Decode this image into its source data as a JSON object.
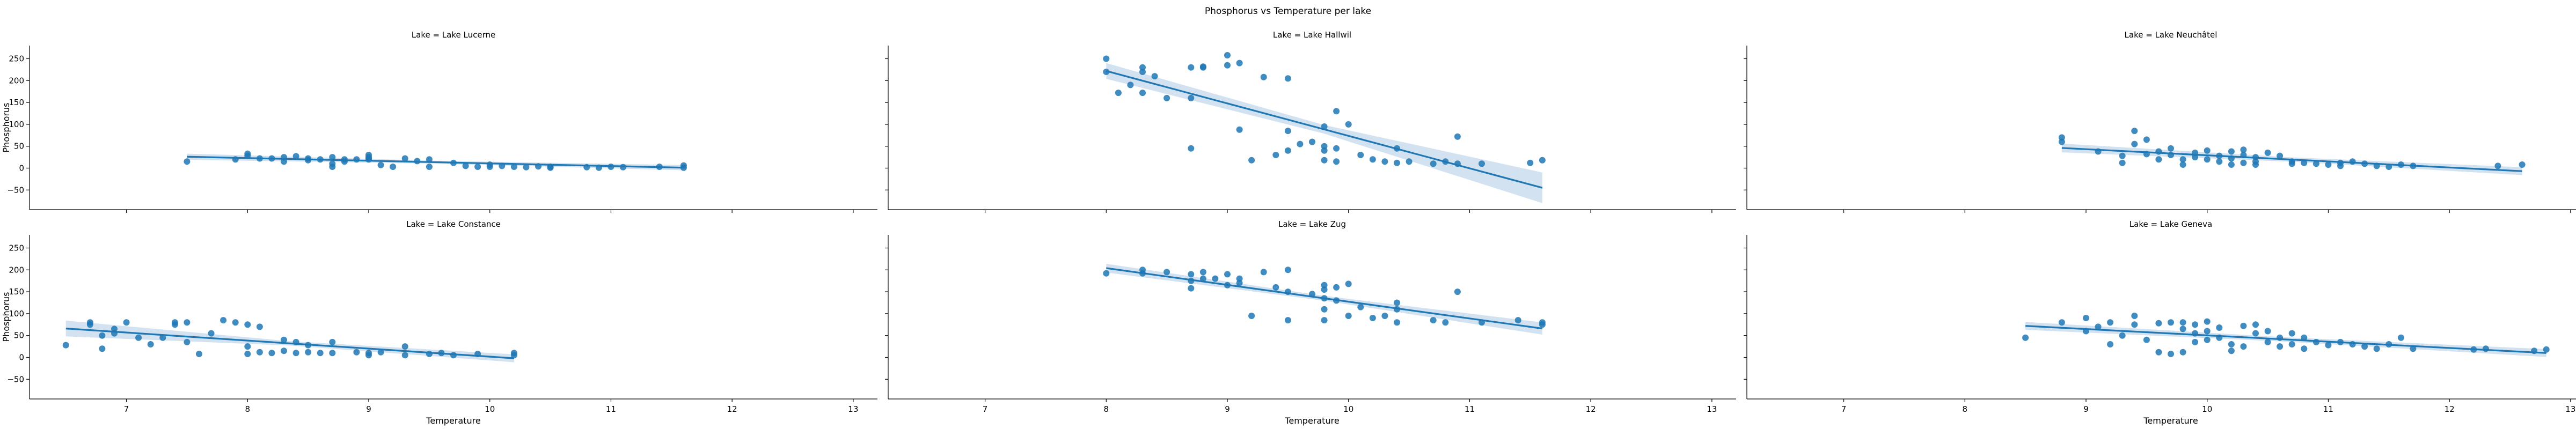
{
  "chart_data": {
    "type": "scatter",
    "title": "Phosphorus vs Temperature per lake",
    "xlabel": "Temperature",
    "ylabel": "Phosphorus",
    "xlim": [
      6.2,
      13.2
    ],
    "ylim": [
      -95,
      280
    ],
    "xticks": [
      7,
      8,
      9,
      10,
      11,
      12,
      13
    ],
    "yticks": [
      -50,
      0,
      50,
      100,
      150,
      200,
      250
    ],
    "grid": false,
    "point_color": "#1f77b4",
    "ci_color": "#aecbe6",
    "panels": [
      {
        "title": "Lake = Lake Lucerne",
        "row": 0,
        "col": 0,
        "fit": {
          "x": [
            7.5,
            11.6
          ],
          "y": [
            26,
            1
          ]
        },
        "ci": [
          7,
          6
        ],
        "points": [
          [
            7.5,
            15
          ],
          [
            7.9,
            20
          ],
          [
            8.0,
            33
          ],
          [
            8.0,
            28
          ],
          [
            8.1,
            22
          ],
          [
            8.2,
            22
          ],
          [
            8.3,
            25
          ],
          [
            8.3,
            15
          ],
          [
            8.4,
            27
          ],
          [
            8.5,
            18
          ],
          [
            8.5,
            22
          ],
          [
            8.6,
            20
          ],
          [
            8.7,
            25
          ],
          [
            8.7,
            3
          ],
          [
            8.7,
            10
          ],
          [
            8.8,
            20
          ],
          [
            8.8,
            15
          ],
          [
            8.9,
            20
          ],
          [
            9.0,
            22
          ],
          [
            9.0,
            30
          ],
          [
            9.0,
            25
          ],
          [
            9.0,
            20
          ],
          [
            9.1,
            7
          ],
          [
            9.2,
            3
          ],
          [
            9.3,
            22
          ],
          [
            9.4,
            16
          ],
          [
            9.5,
            20
          ],
          [
            9.5,
            3
          ],
          [
            9.7,
            12
          ],
          [
            9.8,
            5
          ],
          [
            9.9,
            3
          ],
          [
            10.0,
            8
          ],
          [
            10.0,
            3
          ],
          [
            10.1,
            5
          ],
          [
            10.2,
            3
          ],
          [
            10.3,
            2
          ],
          [
            10.4,
            4
          ],
          [
            10.5,
            1
          ],
          [
            10.5,
            3
          ],
          [
            10.8,
            2
          ],
          [
            10.9,
            1
          ],
          [
            11.0,
            3
          ],
          [
            11.1,
            2
          ],
          [
            11.4,
            3
          ],
          [
            11.6,
            1
          ],
          [
            11.6,
            6
          ]
        ]
      },
      {
        "title": "Lake = Lake Hallwil",
        "row": 0,
        "col": 1,
        "fit": {
          "x": [
            8.0,
            11.6
          ],
          "y": [
            222,
            -45
          ]
        },
        "ci": [
          18,
          35
        ],
        "points": [
          [
            8.0,
            250
          ],
          [
            8.0,
            220
          ],
          [
            8.1,
            172
          ],
          [
            8.2,
            190
          ],
          [
            8.3,
            230
          ],
          [
            8.3,
            220
          ],
          [
            8.3,
            172
          ],
          [
            8.4,
            210
          ],
          [
            8.5,
            160
          ],
          [
            8.7,
            230
          ],
          [
            8.7,
            160
          ],
          [
            8.7,
            45
          ],
          [
            8.8,
            232
          ],
          [
            8.8,
            230
          ],
          [
            9.0,
            258
          ],
          [
            9.0,
            235
          ],
          [
            9.1,
            240
          ],
          [
            9.1,
            88
          ],
          [
            9.2,
            18
          ],
          [
            9.3,
            208
          ],
          [
            9.4,
            30
          ],
          [
            9.5,
            205
          ],
          [
            9.5,
            85
          ],
          [
            9.5,
            40
          ],
          [
            9.6,
            55
          ],
          [
            9.7,
            60
          ],
          [
            9.8,
            95
          ],
          [
            9.8,
            50
          ],
          [
            9.8,
            40
          ],
          [
            9.8,
            18
          ],
          [
            9.9,
            130
          ],
          [
            9.9,
            45
          ],
          [
            9.9,
            15
          ],
          [
            10.0,
            100
          ],
          [
            10.1,
            30
          ],
          [
            10.2,
            20
          ],
          [
            10.3,
            15
          ],
          [
            10.4,
            12
          ],
          [
            10.4,
            45
          ],
          [
            10.5,
            15
          ],
          [
            10.7,
            10
          ],
          [
            10.8,
            15
          ],
          [
            10.9,
            72
          ],
          [
            10.9,
            10
          ],
          [
            11.1,
            10
          ],
          [
            11.5,
            12
          ],
          [
            11.6,
            18
          ]
        ]
      },
      {
        "title": "Lake = Lake Neuchâtel",
        "row": 0,
        "col": 2,
        "fit": {
          "x": [
            8.8,
            12.6
          ],
          "y": [
            46,
            -7
          ]
        },
        "ci": [
          10,
          9
        ],
        "points": [
          [
            8.8,
            70
          ],
          [
            8.8,
            60
          ],
          [
            9.1,
            38
          ],
          [
            9.3,
            28
          ],
          [
            9.3,
            12
          ],
          [
            9.4,
            85
          ],
          [
            9.4,
            55
          ],
          [
            9.5,
            65
          ],
          [
            9.5,
            32
          ],
          [
            9.6,
            38
          ],
          [
            9.6,
            20
          ],
          [
            9.7,
            45
          ],
          [
            9.7,
            30
          ],
          [
            9.8,
            20
          ],
          [
            9.8,
            8
          ],
          [
            9.9,
            35
          ],
          [
            9.9,
            25
          ],
          [
            10.0,
            40
          ],
          [
            10.0,
            20
          ],
          [
            10.1,
            28
          ],
          [
            10.1,
            15
          ],
          [
            10.2,
            38
          ],
          [
            10.2,
            22
          ],
          [
            10.2,
            8
          ],
          [
            10.3,
            42
          ],
          [
            10.3,
            30
          ],
          [
            10.3,
            12
          ],
          [
            10.4,
            25
          ],
          [
            10.4,
            15
          ],
          [
            10.4,
            8
          ],
          [
            10.5,
            35
          ],
          [
            10.6,
            28
          ],
          [
            10.7,
            15
          ],
          [
            10.7,
            10
          ],
          [
            10.8,
            12
          ],
          [
            10.9,
            10
          ],
          [
            11.0,
            8
          ],
          [
            11.1,
            12
          ],
          [
            11.1,
            5
          ],
          [
            11.2,
            15
          ],
          [
            11.3,
            10
          ],
          [
            11.4,
            5
          ],
          [
            11.5,
            3
          ],
          [
            11.6,
            8
          ],
          [
            11.7,
            5
          ],
          [
            12.4,
            5
          ],
          [
            12.6,
            8
          ]
        ]
      },
      {
        "title": "Lake = Lake Constance",
        "row": 1,
        "col": 0,
        "fit": {
          "x": [
            6.5,
            10.2
          ],
          "y": [
            66,
            -2
          ]
        },
        "ci": [
          18,
          9
        ],
        "points": [
          [
            6.5,
            28
          ],
          [
            6.7,
            80
          ],
          [
            6.7,
            75
          ],
          [
            6.8,
            20
          ],
          [
            6.8,
            50
          ],
          [
            6.9,
            65
          ],
          [
            6.9,
            55
          ],
          [
            7.0,
            80
          ],
          [
            7.1,
            45
          ],
          [
            7.2,
            30
          ],
          [
            7.3,
            45
          ],
          [
            7.4,
            75
          ],
          [
            7.4,
            80
          ],
          [
            7.5,
            80
          ],
          [
            7.5,
            35
          ],
          [
            7.6,
            8
          ],
          [
            7.7,
            55
          ],
          [
            7.8,
            85
          ],
          [
            7.9,
            80
          ],
          [
            8.0,
            75
          ],
          [
            8.0,
            25
          ],
          [
            8.0,
            8
          ],
          [
            8.1,
            70
          ],
          [
            8.1,
            12
          ],
          [
            8.2,
            10
          ],
          [
            8.3,
            40
          ],
          [
            8.3,
            15
          ],
          [
            8.4,
            35
          ],
          [
            8.4,
            10
          ],
          [
            8.5,
            12
          ],
          [
            8.5,
            28
          ],
          [
            8.6,
            10
          ],
          [
            8.7,
            35
          ],
          [
            8.7,
            10
          ],
          [
            8.9,
            12
          ],
          [
            9.0,
            10
          ],
          [
            9.0,
            5
          ],
          [
            9.1,
            12
          ],
          [
            9.3,
            25
          ],
          [
            9.3,
            5
          ],
          [
            9.5,
            8
          ],
          [
            9.6,
            10
          ],
          [
            9.7,
            5
          ],
          [
            9.9,
            8
          ],
          [
            10.2,
            10
          ],
          [
            10.2,
            5
          ]
        ]
      },
      {
        "title": "Lake = Lake Zug",
        "row": 1,
        "col": 1,
        "fit": {
          "x": [
            8.0,
            11.6
          ],
          "y": [
            204,
            66
          ]
        },
        "ci": [
          10,
          14
        ],
        "points": [
          [
            8.0,
            192
          ],
          [
            8.3,
            200
          ],
          [
            8.3,
            192
          ],
          [
            8.5,
            195
          ],
          [
            8.7,
            190
          ],
          [
            8.7,
            175
          ],
          [
            8.7,
            158
          ],
          [
            8.8,
            195
          ],
          [
            8.8,
            180
          ],
          [
            8.9,
            180
          ],
          [
            9.0,
            190
          ],
          [
            9.0,
            165
          ],
          [
            9.1,
            180
          ],
          [
            9.1,
            170
          ],
          [
            9.2,
            95
          ],
          [
            9.3,
            195
          ],
          [
            9.4,
            160
          ],
          [
            9.5,
            200
          ],
          [
            9.5,
            150
          ],
          [
            9.5,
            85
          ],
          [
            9.7,
            145
          ],
          [
            9.8,
            165
          ],
          [
            9.8,
            155
          ],
          [
            9.8,
            135
          ],
          [
            9.8,
            110
          ],
          [
            9.8,
            85
          ],
          [
            9.9,
            160
          ],
          [
            9.9,
            130
          ],
          [
            10.0,
            168
          ],
          [
            10.0,
            95
          ],
          [
            10.1,
            115
          ],
          [
            10.2,
            90
          ],
          [
            10.3,
            95
          ],
          [
            10.4,
            125
          ],
          [
            10.4,
            110
          ],
          [
            10.4,
            80
          ],
          [
            10.7,
            85
          ],
          [
            10.8,
            80
          ],
          [
            10.9,
            150
          ],
          [
            11.1,
            80
          ],
          [
            11.4,
            85
          ],
          [
            11.6,
            80
          ],
          [
            11.6,
            75
          ]
        ]
      },
      {
        "title": "Lake = Lake Geneva",
        "row": 1,
        "col": 2,
        "fit": {
          "x": [
            8.5,
            12.8
          ],
          "y": [
            72,
            10
          ]
        },
        "ci": [
          9,
          9
        ],
        "points": [
          [
            8.5,
            45
          ],
          [
            8.8,
            80
          ],
          [
            9.0,
            90
          ],
          [
            9.0,
            60
          ],
          [
            9.1,
            70
          ],
          [
            9.2,
            80
          ],
          [
            9.2,
            30
          ],
          [
            9.3,
            50
          ],
          [
            9.4,
            95
          ],
          [
            9.4,
            75
          ],
          [
            9.5,
            40
          ],
          [
            9.6,
            78
          ],
          [
            9.6,
            12
          ],
          [
            9.7,
            80
          ],
          [
            9.7,
            8
          ],
          [
            9.8,
            80
          ],
          [
            9.8,
            65
          ],
          [
            9.8,
            12
          ],
          [
            9.9,
            75
          ],
          [
            9.9,
            55
          ],
          [
            9.9,
            35
          ],
          [
            10.0,
            82
          ],
          [
            10.0,
            60
          ],
          [
            10.0,
            40
          ],
          [
            10.1,
            68
          ],
          [
            10.1,
            45
          ],
          [
            10.2,
            30
          ],
          [
            10.2,
            15
          ],
          [
            10.3,
            72
          ],
          [
            10.3,
            25
          ],
          [
            10.4,
            75
          ],
          [
            10.4,
            55
          ],
          [
            10.5,
            60
          ],
          [
            10.5,
            35
          ],
          [
            10.6,
            45
          ],
          [
            10.6,
            25
          ],
          [
            10.7,
            55
          ],
          [
            10.7,
            30
          ],
          [
            10.8,
            45
          ],
          [
            10.8,
            20
          ],
          [
            10.9,
            35
          ],
          [
            11.0,
            28
          ],
          [
            11.1,
            35
          ],
          [
            11.2,
            30
          ],
          [
            11.3,
            25
          ],
          [
            11.4,
            20
          ],
          [
            11.5,
            30
          ],
          [
            11.6,
            45
          ],
          [
            11.7,
            20
          ],
          [
            12.2,
            18
          ],
          [
            12.3,
            20
          ],
          [
            12.7,
            15
          ],
          [
            12.8,
            18
          ]
        ]
      }
    ]
  }
}
